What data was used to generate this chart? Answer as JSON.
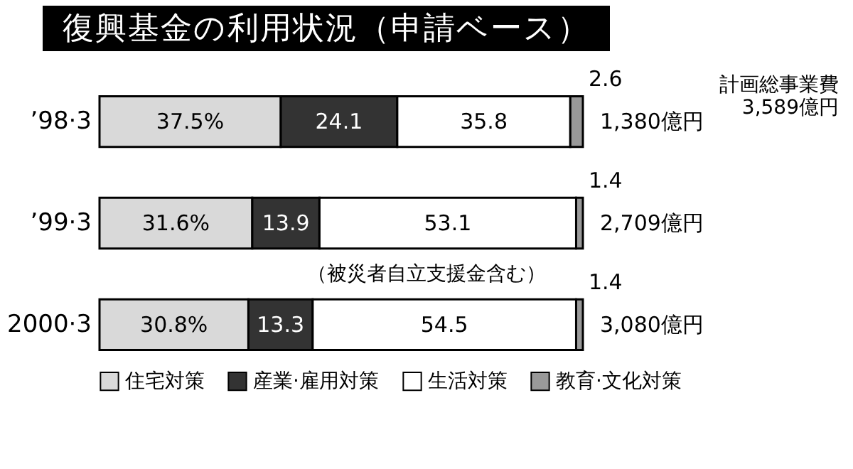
{
  "chart_data": {
    "type": "bar",
    "orientation": "horizontal",
    "stacked": true,
    "legend": "bottom",
    "title": "復興基金の利用状況（申請ベース）",
    "categories": [
      "’98·3",
      "’99·3",
      "2000·3"
    ],
    "series": [
      {
        "name": "住宅対策",
        "color": "#d9d9d9",
        "values": [
          37.5,
          31.6,
          30.8
        ],
        "value_labels": [
          "37.5%",
          "31.6%",
          "30.8%"
        ]
      },
      {
        "name": "産業·雇用対策",
        "color": "#333333",
        "values": [
          24.1,
          13.9,
          13.3
        ],
        "value_labels": [
          "24.1",
          "13.9",
          "13.3"
        ]
      },
      {
        "name": "生活対策",
        "color": "#ffffff",
        "values": [
          35.8,
          53.1,
          54.5
        ],
        "value_labels": [
          "35.8",
          "53.1",
          "54.5"
        ]
      },
      {
        "name": "教育·文化対策",
        "color": "#999999",
        "values": [
          2.6,
          1.4,
          1.4
        ],
        "value_labels": [
          "2.6",
          "1.4",
          "1.4"
        ]
      }
    ],
    "annotations": [
      "（被災者自立支援金含む）",
      "計画総事業費\n3,589億円",
      "1,380億円",
      "2,709億円",
      "3,080億円"
    ]
  }
}
